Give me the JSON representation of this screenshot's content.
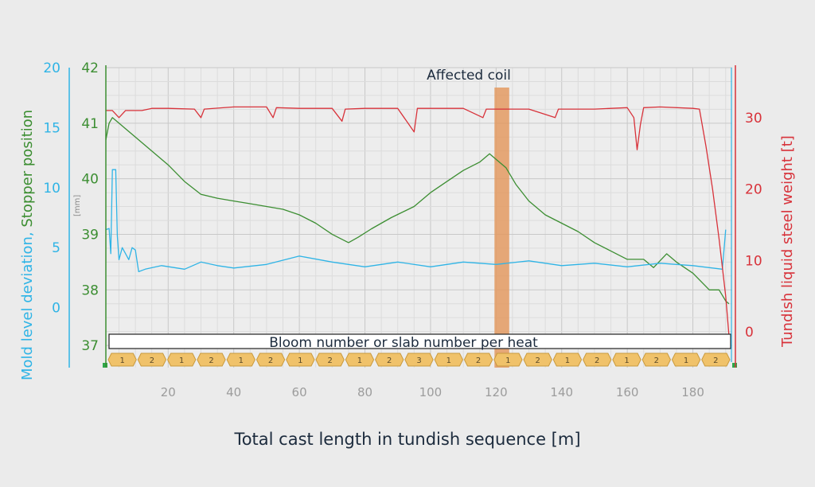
{
  "colors": {
    "mold_level": "#2fb4e6",
    "stopper": "#3c8e32",
    "tundish": "#d8323a",
    "highlight": "#e39a62",
    "segment_fill": "#f0c26a",
    "segment_stroke": "#c99a3e"
  },
  "chart_data": {
    "type": "line",
    "title": "",
    "annotation": "Affected coil",
    "xlabel": "Total cast length in tundish sequence [m]",
    "x_ticks": [
      20,
      40,
      60,
      80,
      100,
      120,
      140,
      160,
      180
    ],
    "xlim": [
      1,
      192
    ],
    "highlight_region": [
      119.5,
      124
    ],
    "axes": {
      "left_outer": {
        "label": "Mold level deviation,",
        "ticks": [
          0,
          5,
          10,
          15,
          20
        ],
        "range": [
          -5,
          20
        ]
      },
      "left_inner": {
        "label": "Stopper position",
        "unit": "[mm]",
        "ticks": [
          37,
          38,
          39,
          40,
          41,
          42
        ],
        "range": [
          36.6,
          42
        ]
      },
      "right": {
        "label": "Tundish liquid steel weight [t]",
        "ticks": [
          0,
          10,
          20,
          30
        ],
        "range": [
          -5,
          37
        ]
      }
    },
    "grid": true,
    "band": {
      "label": "Bloom number or slab number per heat",
      "segments": [
        "1",
        "2",
        "1",
        "2",
        "1",
        "2",
        "1",
        "2",
        "1",
        "2",
        "3",
        "1",
        "2",
        "1",
        "2",
        "1",
        "2",
        "1",
        "2",
        "1",
        "2"
      ]
    },
    "series": [
      {
        "name": "Stopper position",
        "axis": "left_inner",
        "points": [
          [
            1,
            40.7
          ],
          [
            2,
            41.0
          ],
          [
            3,
            41.1
          ],
          [
            5,
            41.0
          ],
          [
            7,
            40.9
          ],
          [
            10,
            40.75
          ],
          [
            15,
            40.5
          ],
          [
            20,
            40.25
          ],
          [
            25,
            39.95
          ],
          [
            30,
            39.72
          ],
          [
            35,
            39.65
          ],
          [
            40,
            39.6
          ],
          [
            45,
            39.55
          ],
          [
            50,
            39.5
          ],
          [
            55,
            39.45
          ],
          [
            60,
            39.35
          ],
          [
            65,
            39.2
          ],
          [
            70,
            39.0
          ],
          [
            75,
            38.85
          ],
          [
            78,
            38.95
          ],
          [
            82,
            39.1
          ],
          [
            88,
            39.3
          ],
          [
            95,
            39.5
          ],
          [
            100,
            39.75
          ],
          [
            105,
            39.95
          ],
          [
            110,
            40.15
          ],
          [
            115,
            40.3
          ],
          [
            118,
            40.45
          ],
          [
            120,
            40.35
          ],
          [
            123,
            40.2
          ],
          [
            126,
            39.9
          ],
          [
            130,
            39.6
          ],
          [
            135,
            39.35
          ],
          [
            140,
            39.2
          ],
          [
            145,
            39.05
          ],
          [
            150,
            38.85
          ],
          [
            155,
            38.7
          ],
          [
            160,
            38.55
          ],
          [
            165,
            38.55
          ],
          [
            168,
            38.4
          ],
          [
            172,
            38.65
          ],
          [
            175,
            38.5
          ],
          [
            180,
            38.3
          ],
          [
            185,
            38.0
          ],
          [
            188,
            38.0
          ],
          [
            190,
            37.8
          ],
          [
            191,
            37.75
          ]
        ]
      },
      {
        "name": "Mold level deviation",
        "axis": "left_outer",
        "points": [
          [
            1,
            6.5
          ],
          [
            2,
            6.6
          ],
          [
            2.5,
            4.5
          ],
          [
            3,
            11.5
          ],
          [
            4,
            11.5
          ],
          [
            4.5,
            6
          ],
          [
            5,
            4
          ],
          [
            6,
            5
          ],
          [
            7,
            4.5
          ],
          [
            8,
            4
          ],
          [
            9,
            5
          ],
          [
            10,
            4.8
          ],
          [
            11,
            3
          ],
          [
            13,
            3.2
          ],
          [
            18,
            3.5
          ],
          [
            25,
            3.2
          ],
          [
            30,
            3.8
          ],
          [
            35,
            3.5
          ],
          [
            40,
            3.3
          ],
          [
            50,
            3.6
          ],
          [
            60,
            4.3
          ],
          [
            70,
            3.8
          ],
          [
            80,
            3.4
          ],
          [
            90,
            3.8
          ],
          [
            100,
            3.4
          ],
          [
            110,
            3.8
          ],
          [
            120,
            3.6
          ],
          [
            130,
            3.9
          ],
          [
            140,
            3.5
          ],
          [
            150,
            3.7
          ],
          [
            160,
            3.4
          ],
          [
            170,
            3.7
          ],
          [
            180,
            3.5
          ],
          [
            189,
            3.2
          ],
          [
            190,
            6.5
          ]
        ]
      },
      {
        "name": "Tundish liquid steel weight",
        "axis": "right",
        "points": [
          [
            1,
            31
          ],
          [
            3,
            31
          ],
          [
            5,
            30
          ],
          [
            7,
            31
          ],
          [
            10,
            31
          ],
          [
            12,
            31
          ],
          [
            15,
            31.3
          ],
          [
            20,
            31.3
          ],
          [
            28,
            31.2
          ],
          [
            30,
            30
          ],
          [
            31,
            31.2
          ],
          [
            40,
            31.5
          ],
          [
            50,
            31.5
          ],
          [
            52,
            30
          ],
          [
            53,
            31.4
          ],
          [
            60,
            31.3
          ],
          [
            70,
            31.3
          ],
          [
            73,
            29.5
          ],
          [
            74,
            31.2
          ],
          [
            80,
            31.3
          ],
          [
            90,
            31.3
          ],
          [
            95,
            28
          ],
          [
            96,
            31.3
          ],
          [
            100,
            31.3
          ],
          [
            110,
            31.3
          ],
          [
            116,
            30
          ],
          [
            117,
            31.2
          ],
          [
            120,
            31.2
          ],
          [
            130,
            31.2
          ],
          [
            138,
            30
          ],
          [
            139,
            31.2
          ],
          [
            150,
            31.2
          ],
          [
            160,
            31.4
          ],
          [
            162,
            30
          ],
          [
            163,
            25.5
          ],
          [
            164,
            29
          ],
          [
            165,
            31.4
          ],
          [
            170,
            31.5
          ],
          [
            180,
            31.3
          ],
          [
            182,
            31.2
          ],
          [
            184,
            26
          ],
          [
            186,
            20
          ],
          [
            188,
            13
          ],
          [
            190,
            5
          ],
          [
            191,
            -0.5
          ]
        ]
      }
    ]
  }
}
